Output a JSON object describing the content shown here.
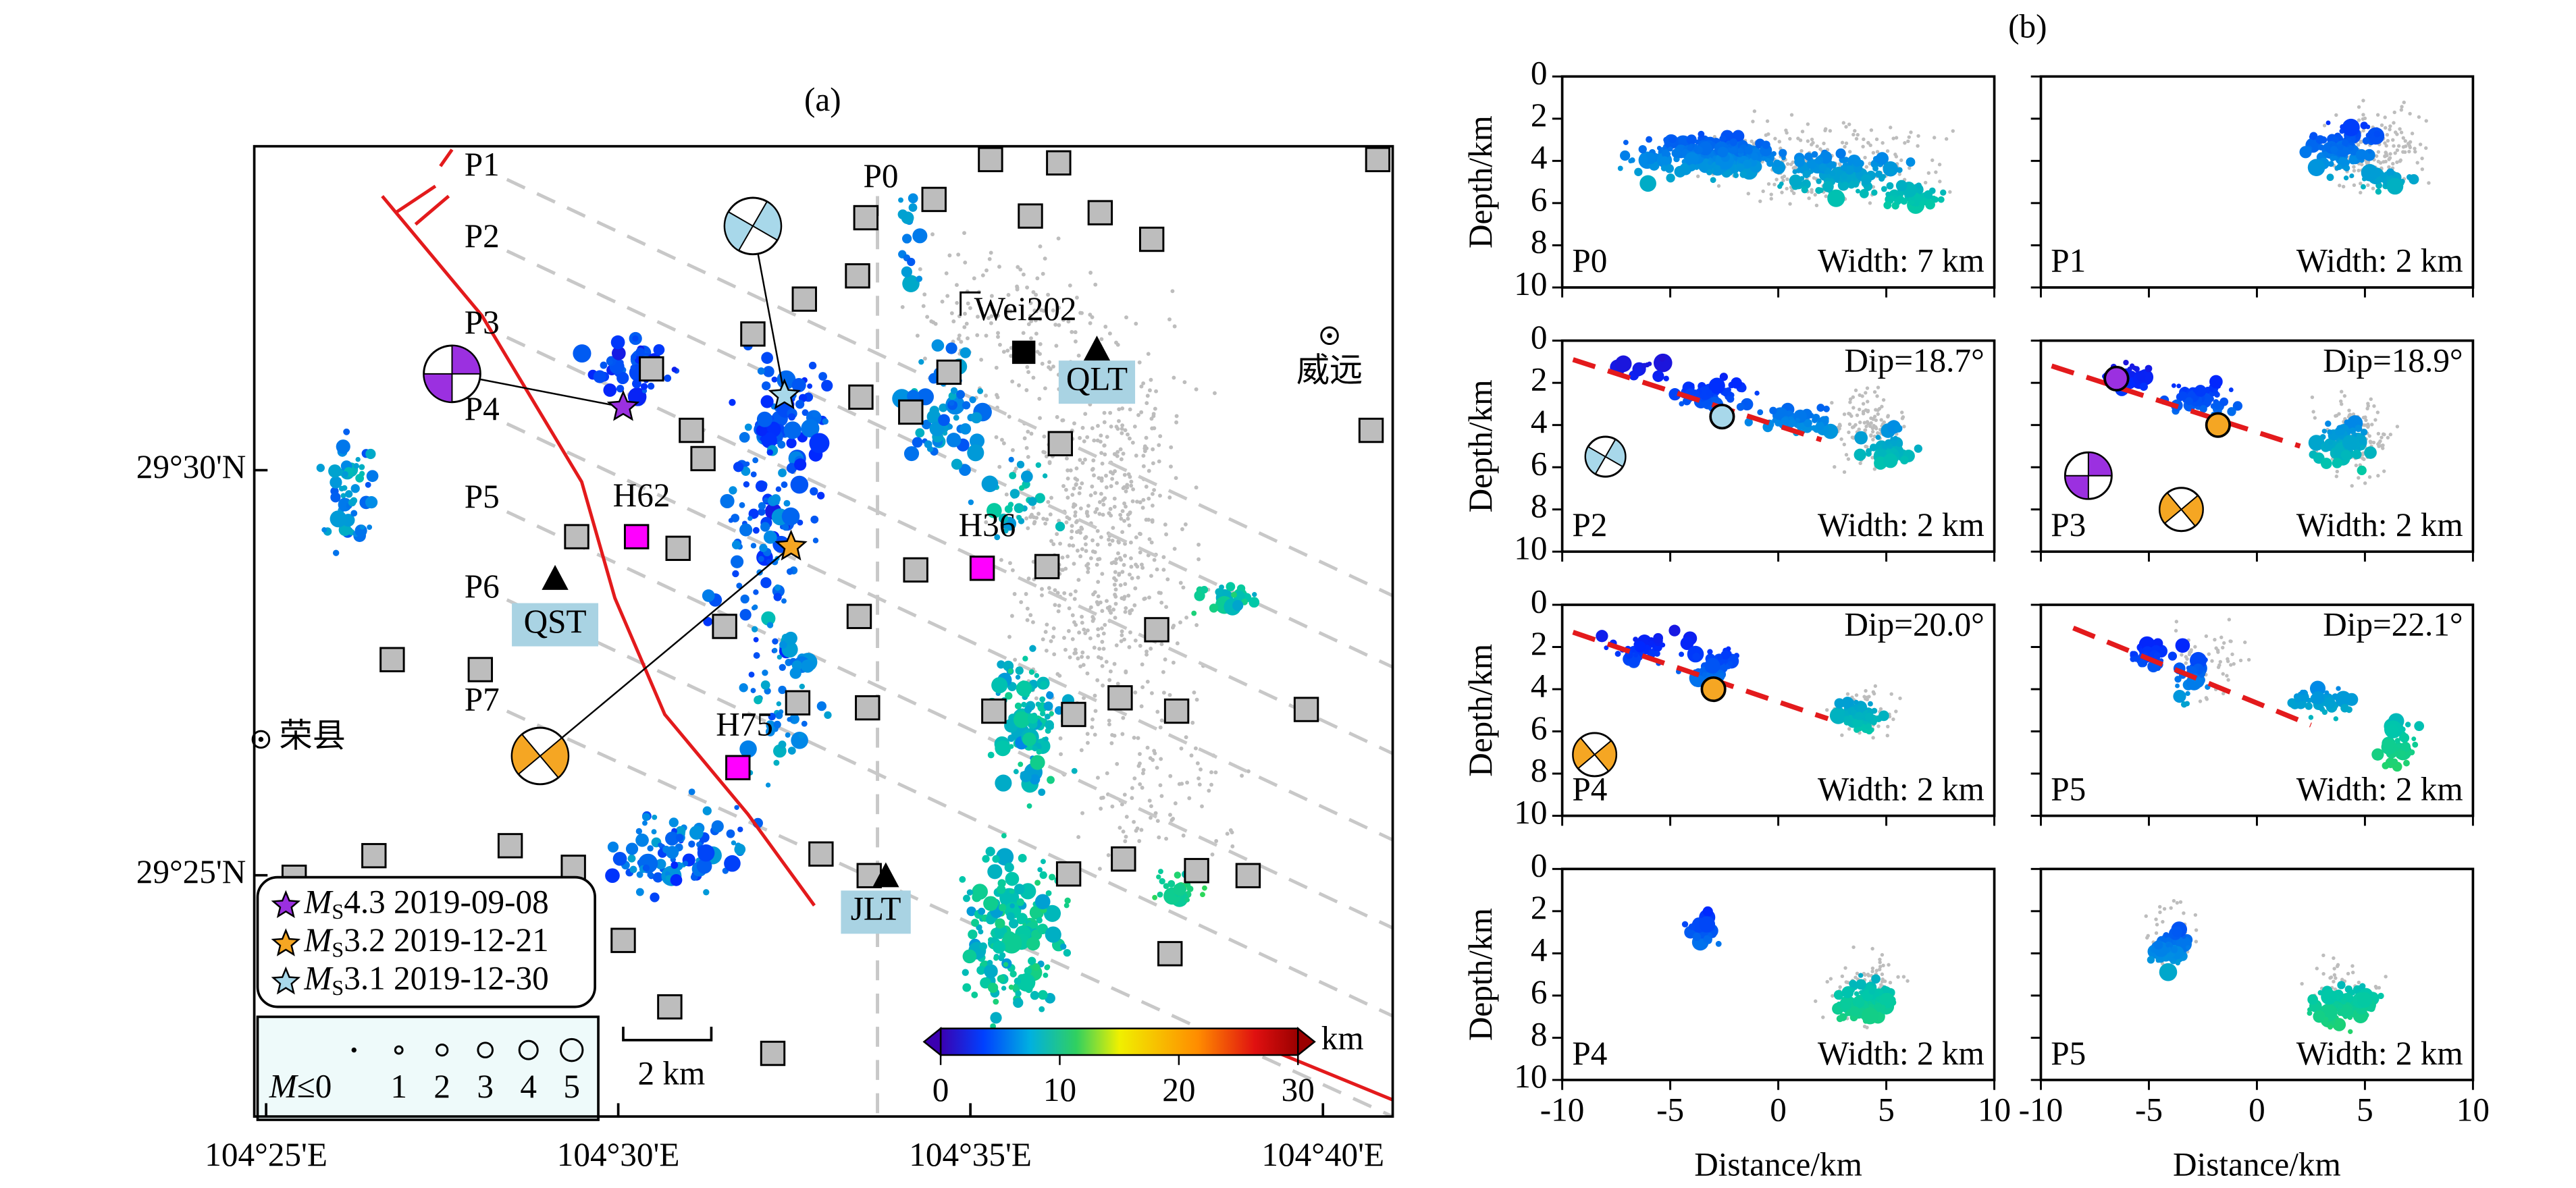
{
  "map": {
    "label": "(a)",
    "xlim": [
      104.4139,
      104.6832
    ],
    "ylim": [
      29.3671,
      29.5666
    ],
    "xticks": [
      {
        "value": 104.4167,
        "label": "104°25'E"
      },
      {
        "value": 104.5,
        "label": "104°30'E"
      },
      {
        "value": 104.5833,
        "label": "104°35'E"
      },
      {
        "value": 104.6667,
        "label": "104°40'E"
      }
    ],
    "yticks": [
      {
        "value": 29.4167,
        "label": "29°25'N"
      },
      {
        "value": 29.5,
        "label": "29°30'N"
      }
    ],
    "profiles": [
      "P0",
      "P1",
      "P2",
      "P3",
      "P4",
      "P5",
      "P6",
      "P7"
    ],
    "stations": [
      "QLT",
      "QST",
      "JLT"
    ],
    "towns": [
      "威远",
      "荣县"
    ],
    "wells": [
      "H62",
      "H36",
      "H75"
    ],
    "borehole": "Wei202",
    "events": [
      {
        "symbol": "M",
        "subscript": "S",
        "label": "4.3 2019-09-08",
        "color": "#9b30e0"
      },
      {
        "symbol": "M",
        "subscript": "S",
        "label": "3.2 2019-12-21",
        "color": "#f5a623"
      },
      {
        "symbol": "M",
        "subscript": "S",
        "label": "3.1 2019-12-30",
        "color": "#a8d8ea"
      }
    ],
    "size_legend": {
      "symbol": "M",
      "threshold": "≤0",
      "values": [
        1,
        2,
        3,
        4,
        5
      ]
    },
    "scale_bar": "2 km",
    "colorbar": {
      "unit": "km",
      "lim": [
        0,
        30
      ],
      "ticks": [
        0,
        10,
        20,
        30
      ]
    }
  },
  "sections": {
    "label": "(b)",
    "xlabel": "Distance/km",
    "ylabel": "Depth/km",
    "xlim": [
      -10,
      10
    ],
    "ylim": [
      0,
      10
    ],
    "xticks": [
      -10,
      -5,
      0,
      5,
      10
    ],
    "yticks": [
      0,
      2,
      4,
      6,
      8,
      10
    ],
    "panels": [
      {
        "name": "P0",
        "width": "Width: 7 km"
      },
      {
        "name": "P1",
        "width": "Width: 2 km"
      },
      {
        "name": "P2",
        "width": "Width: 2 km",
        "dip": "Dip=18.7°"
      },
      {
        "name": "P3",
        "width": "Width: 2 km",
        "dip": "Dip=18.9°"
      },
      {
        "name": "P4",
        "width": "Width: 2 km",
        "dip": "Dip=20.0°"
      },
      {
        "name": "P5",
        "width": "Width: 2 km",
        "dip": "Dip=22.1°"
      },
      {
        "name": "P4",
        "width": "Width: 2 km"
      },
      {
        "name": "P5",
        "width": "Width: 2 km"
      }
    ]
  }
}
